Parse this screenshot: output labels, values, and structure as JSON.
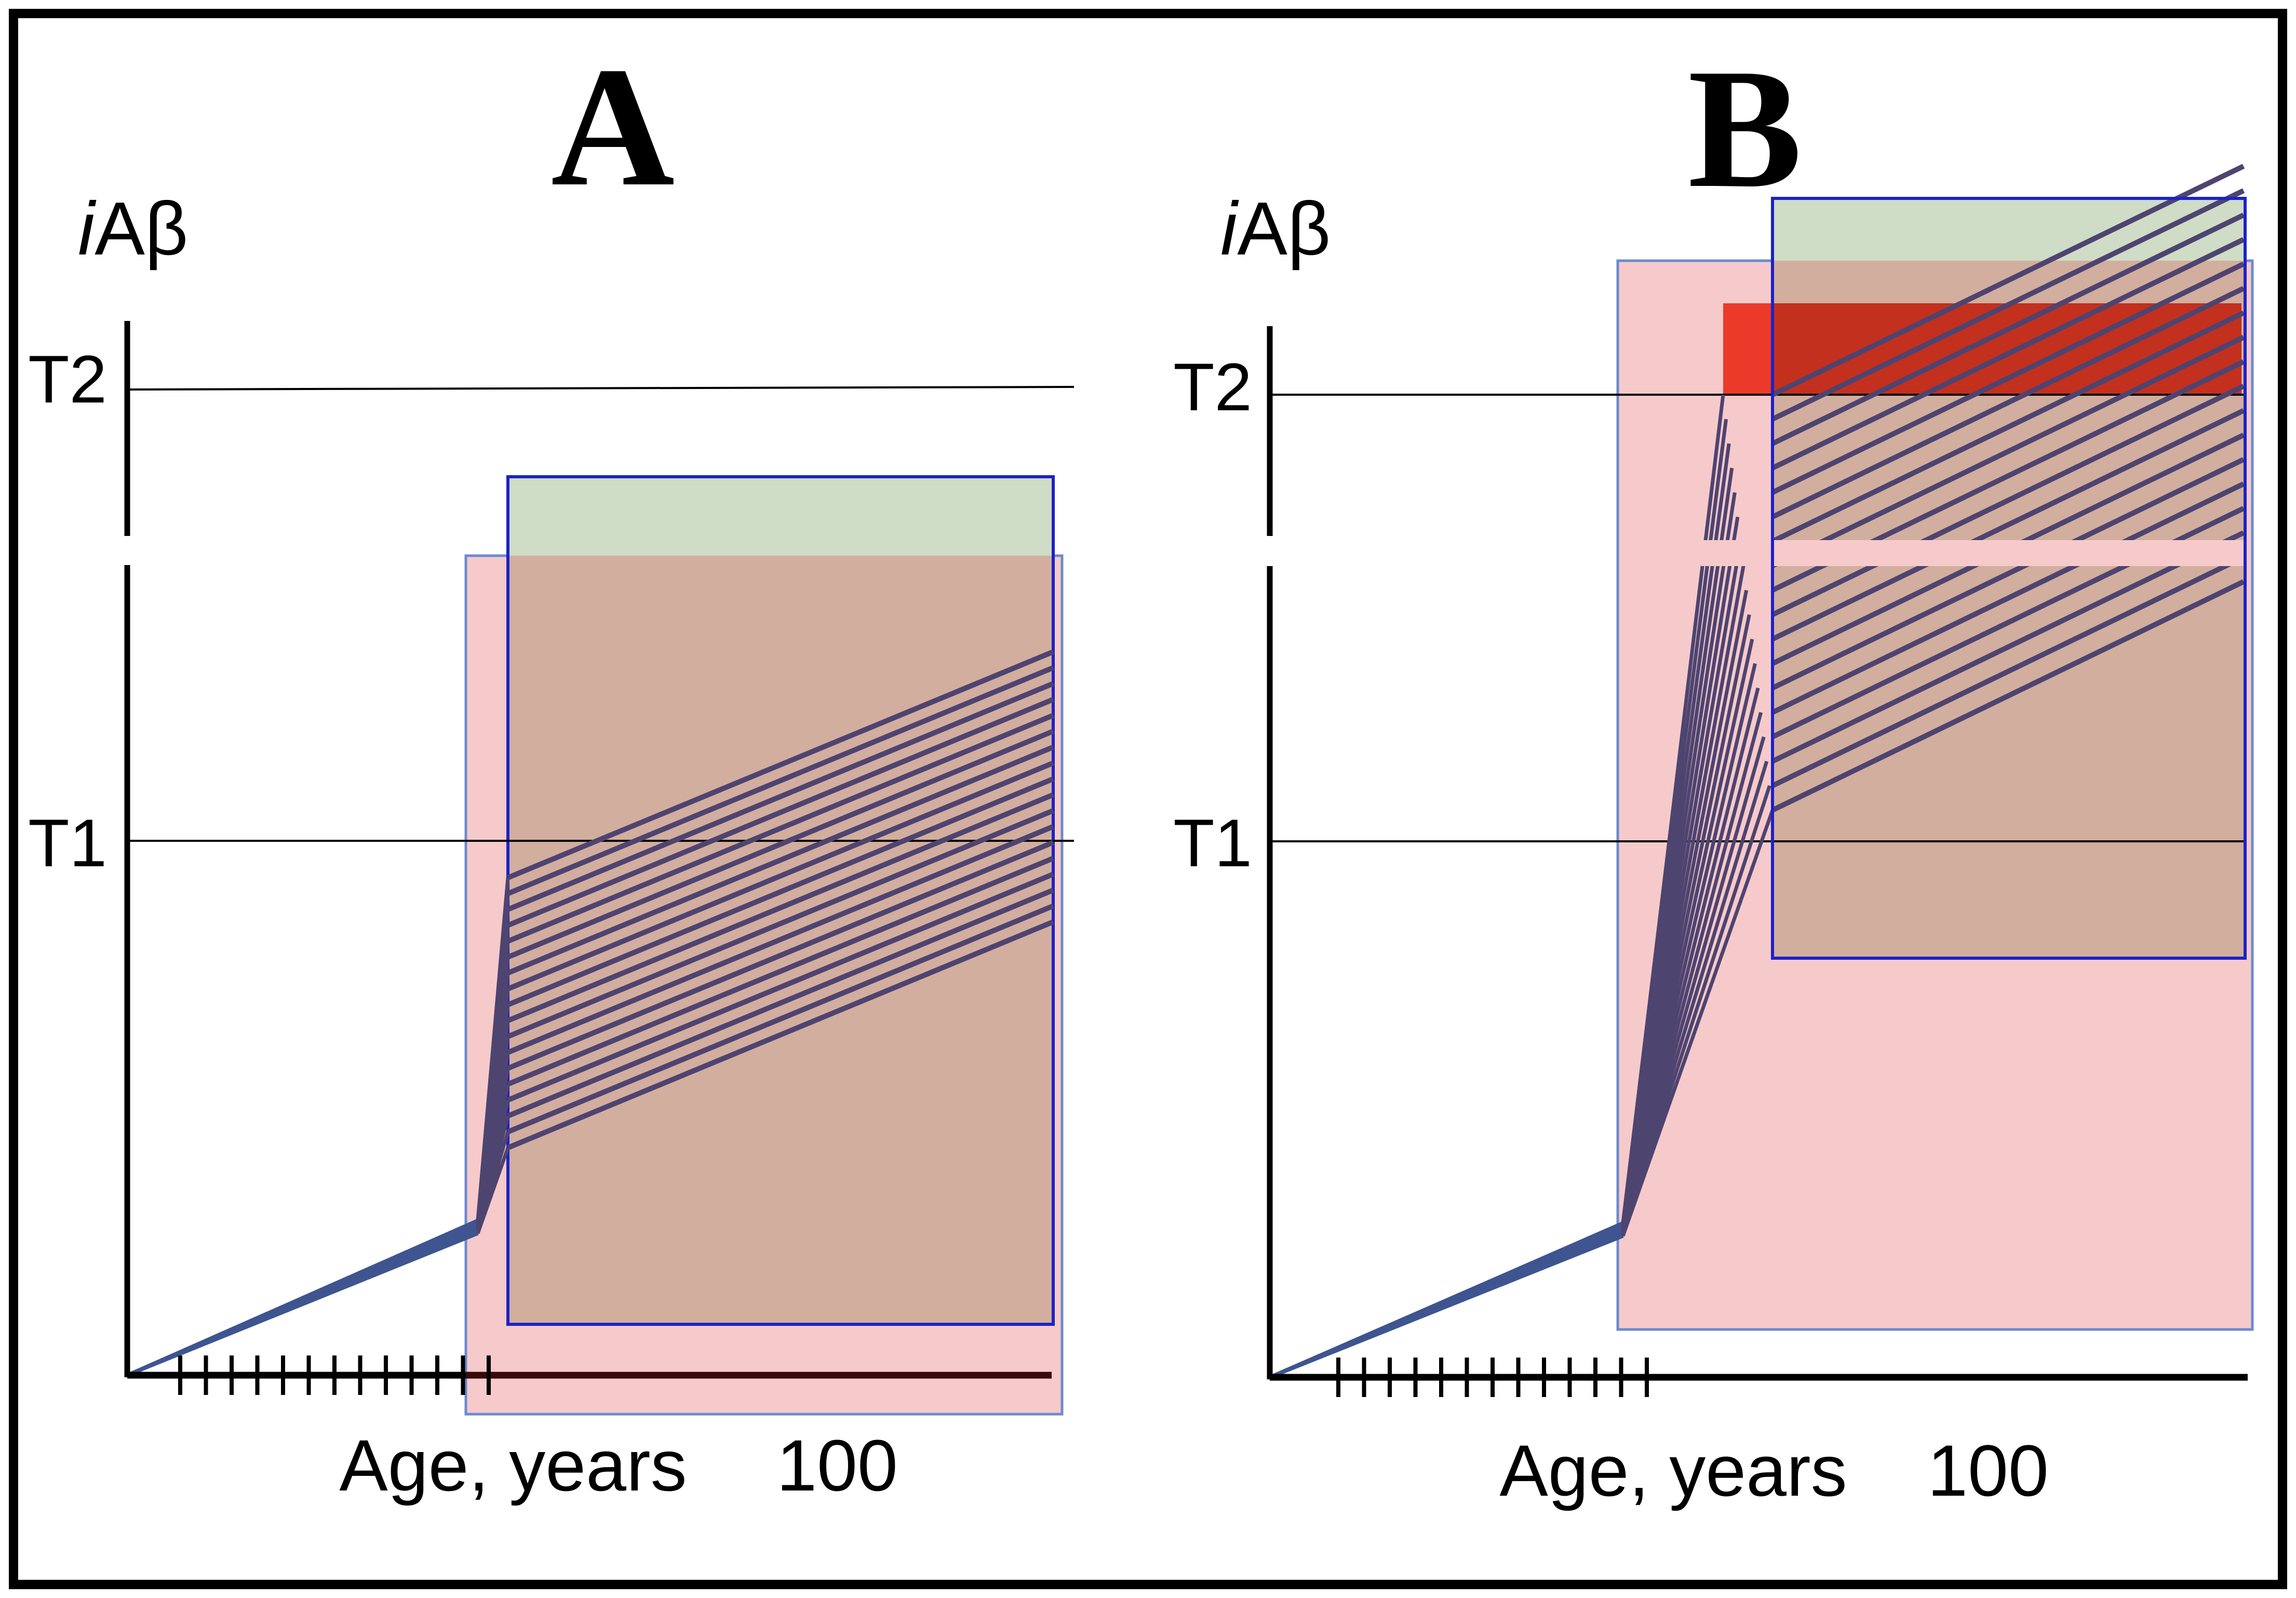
{
  "panels": [
    {
      "id": "A",
      "letter": "A",
      "y_axis_label": "iAβ",
      "threshold_labels": [
        "T2",
        "T1"
      ],
      "x_axis_label": "Age, years",
      "x_tick_label": "100",
      "x_tick_count": 13,
      "line_bundle_count": 18
    },
    {
      "id": "B",
      "letter": "B",
      "y_axis_label": "iAβ",
      "threshold_labels": [
        "T2",
        "T1"
      ],
      "x_axis_label": "Age, years",
      "x_tick_label": "100",
      "x_tick_count": 13,
      "line_bundle_count": 18
    }
  ],
  "colors": {
    "frame": "#000000",
    "pink_region": "#f6caca",
    "pink_region_border": "#6a8bd0",
    "green_region": "#cfdcc6",
    "brown_overlap": "#d2ae9e",
    "blue_region_border": "#1c22c8",
    "red_region": "#c3301e",
    "red_region_light": "#ec3a2a",
    "trajectory_lines": "#4e4470",
    "early_trajectory": "#3e5590",
    "axis": "#000000"
  }
}
